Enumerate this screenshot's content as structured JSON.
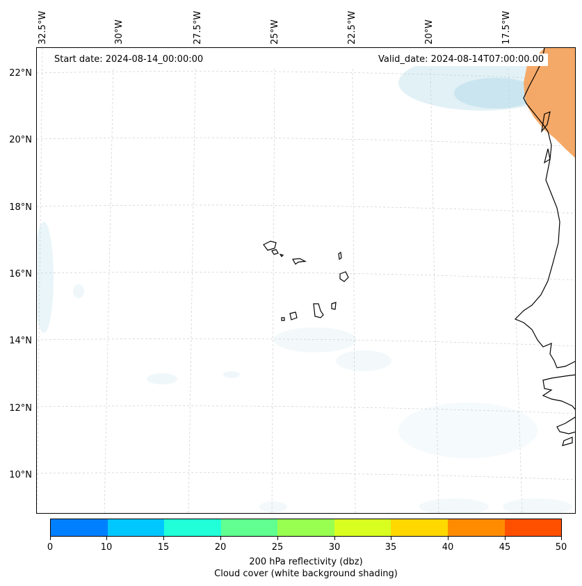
{
  "map": {
    "start_date": "Start date: 2024-08-14_00:00:00",
    "valid_date": "Valid_date: 2024-08-14T07:00:00.00",
    "lon_labels": [
      "32.5°W",
      "30°W",
      "27.5°W",
      "25°W",
      "22.5°W",
      "20°W",
      "17.5°W"
    ],
    "lat_labels": [
      "22°N",
      "20°N",
      "18°N",
      "16°N",
      "14°N",
      "12°N",
      "10°N"
    ],
    "gridlines": true,
    "land_color": "#f4a460",
    "cloud_color": "#add8e6"
  },
  "colorbar": {
    "ticks": [
      "0",
      "10",
      "15",
      "20",
      "25",
      "30",
      "35",
      "40",
      "45",
      "50"
    ],
    "colors": [
      "#0080ff",
      "#00c8ff",
      "#20ffd8",
      "#60ff90",
      "#98ff50",
      "#d8ff20",
      "#ffd800",
      "#ff8c00",
      "#ff5000"
    ],
    "label_line1": "200 hPa reflectivity (dbz)",
    "label_line2": "Cloud cover (white background shading)"
  }
}
